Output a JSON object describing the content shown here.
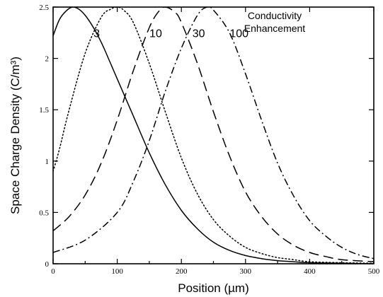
{
  "chart_data": {
    "type": "line",
    "xlabel": "Position (µm)",
    "ylabel": "Space Charge Density (C/m³)",
    "xlim": [
      0,
      500
    ],
    "ylim": [
      0,
      2.5
    ],
    "xticks": [
      0,
      100,
      200,
      300,
      400,
      500
    ],
    "yticks": [
      0,
      0.5,
      1,
      1.5,
      2,
      2.5
    ],
    "x_tick_labels": [
      "0",
      "100",
      "200",
      "300",
      "400",
      "500"
    ],
    "y_tick_labels": [
      "0",
      "0.5",
      "1",
      "1.5",
      "2",
      "2.5"
    ],
    "legend": {
      "title_lines": [
        "Conductivity",
        "Enhancement"
      ],
      "placement": "top-right"
    },
    "grid": false,
    "series": [
      {
        "name": "3",
        "line_style": "solid",
        "x": [
          0,
          10,
          20,
          30,
          40,
          50,
          60,
          70,
          80,
          100,
          125,
          150,
          175,
          200,
          225,
          250,
          275,
          300,
          325,
          350,
          375,
          400,
          450,
          500
        ],
        "y": [
          2.22,
          2.38,
          2.46,
          2.5,
          2.48,
          2.42,
          2.33,
          2.22,
          2.09,
          1.8,
          1.44,
          1.08,
          0.77,
          0.52,
          0.34,
          0.21,
          0.13,
          0.08,
          0.05,
          0.03,
          0.02,
          0.01,
          0.005,
          0.0
        ]
      },
      {
        "name": "10",
        "line_style": "dotted",
        "x": [
          0,
          10,
          25,
          50,
          75,
          90,
          100,
          110,
          125,
          150,
          175,
          200,
          225,
          250,
          275,
          300,
          325,
          350,
          375,
          400,
          450,
          500
        ],
        "y": [
          0.9,
          1.12,
          1.5,
          2.05,
          2.4,
          2.48,
          2.5,
          2.47,
          2.35,
          1.95,
          1.48,
          1.03,
          0.68,
          0.43,
          0.27,
          0.16,
          0.1,
          0.06,
          0.04,
          0.02,
          0.01,
          0.005
        ]
      },
      {
        "name": "30",
        "line_style": "dashed",
        "x": [
          0,
          25,
          50,
          75,
          100,
          125,
          150,
          165,
          175,
          190,
          200,
          225,
          250,
          275,
          300,
          325,
          350,
          375,
          400,
          425,
          450,
          500
        ],
        "y": [
          0.32,
          0.46,
          0.67,
          0.98,
          1.4,
          1.88,
          2.3,
          2.46,
          2.5,
          2.45,
          2.35,
          1.95,
          1.48,
          1.05,
          0.7,
          0.46,
          0.29,
          0.18,
          0.11,
          0.07,
          0.04,
          0.02
        ]
      },
      {
        "name": "100",
        "line_style": "dash-dot",
        "x": [
          0,
          50,
          100,
          125,
          150,
          175,
          200,
          225,
          240,
          250,
          275,
          300,
          325,
          350,
          375,
          400,
          425,
          450,
          475,
          500
        ],
        "y": [
          0.11,
          0.23,
          0.5,
          0.8,
          1.2,
          1.68,
          2.1,
          2.42,
          2.5,
          2.47,
          2.25,
          1.85,
          1.4,
          0.98,
          0.66,
          0.42,
          0.27,
          0.16,
          0.09,
          0.05
        ]
      }
    ],
    "curve_labels": [
      {
        "text": "3",
        "x": 68,
        "y": 2.25
      },
      {
        "text": "10",
        "x": 160,
        "y": 2.25
      },
      {
        "text": "30",
        "x": 227,
        "y": 2.25
      },
      {
        "text": "100",
        "x": 290,
        "y": 2.25
      }
    ]
  }
}
